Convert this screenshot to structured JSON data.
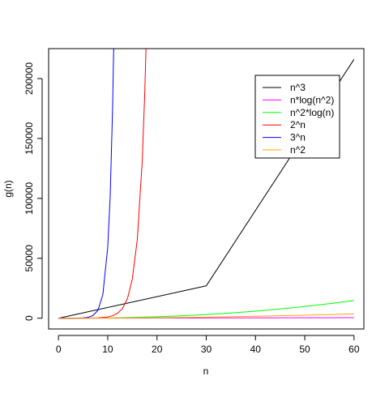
{
  "chart_data": {
    "type": "line",
    "title": "",
    "xlabel": "n",
    "ylabel": "g(n)",
    "xlim": [
      -2,
      62
    ],
    "ylim": [
      -9000,
      225000
    ],
    "x_ticks": [
      0,
      10,
      20,
      30,
      40,
      50,
      60
    ],
    "x_tick_labels": [
      "0",
      "10",
      "20",
      "30",
      "40",
      "50",
      "60"
    ],
    "y_ticks": [
      0,
      50000,
      100000,
      150000,
      200000
    ],
    "y_tick_labels": [
      "0",
      "50000",
      "100000",
      "150000",
      "200000"
    ],
    "grid": false,
    "legend_position": "top-right",
    "series": [
      {
        "name": "n^3",
        "color": "#000000",
        "x": [
          0,
          30,
          60
        ],
        "y": [
          0,
          27000,
          216000
        ]
      },
      {
        "name": "n*log(n^2)",
        "color": "#ff00ff",
        "x": [
          0,
          10,
          20,
          30,
          40,
          50,
          60
        ],
        "y": [
          0,
          46,
          120,
          204,
          295,
          391,
          491
        ]
      },
      {
        "name": "n^2*log(n)",
        "color": "#00ff00",
        "x": [
          1,
          5,
          10,
          15,
          20,
          25,
          30,
          35,
          40,
          45,
          50,
          55,
          60
        ],
        "y": [
          0,
          40,
          230,
          609,
          1198,
          2012,
          3061,
          4356,
          5902,
          7709,
          9780,
          12125,
          14740
        ]
      },
      {
        "name": "2^n",
        "color": "#ff0000",
        "x": [
          0,
          4,
          6,
          8,
          10,
          11,
          12,
          13,
          14,
          15,
          16,
          17,
          17.5,
          17.8
        ],
        "y": [
          1,
          16,
          64,
          256,
          1024,
          2048,
          4096,
          8192,
          16384,
          32768,
          65536,
          131072,
          185364,
          228209
        ]
      },
      {
        "name": "3^n",
        "color": "#0000ff",
        "x": [
          0,
          3,
          5,
          6,
          7,
          8,
          9,
          10,
          10.5,
          11,
          11.3
        ],
        "y": [
          1,
          27,
          243,
          729,
          2187,
          6561,
          19683,
          59049,
          102276,
          177147,
          246210
        ]
      },
      {
        "name": "n^2",
        "color": "#ffa500",
        "x": [
          0,
          10,
          20,
          30,
          40,
          50,
          60
        ],
        "y": [
          0,
          100,
          400,
          900,
          1600,
          2500,
          3600
        ]
      }
    ]
  }
}
